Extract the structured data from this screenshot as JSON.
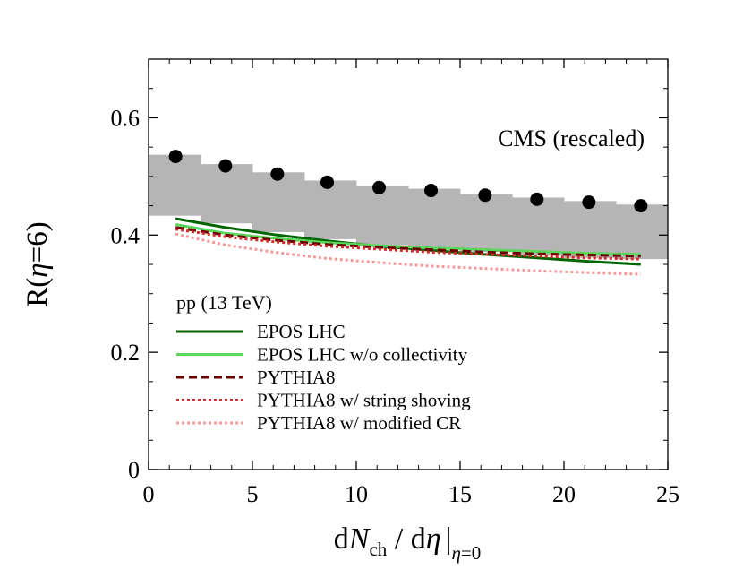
{
  "chart_data": {
    "type": "line",
    "title": "",
    "xlabel": "dNch / dη |η=0",
    "ylabel": "R(η=6)",
    "xlim": [
      0,
      25
    ],
    "ylim": [
      0,
      0.7
    ],
    "x_ticks": [
      0,
      5,
      10,
      15,
      20,
      25
    ],
    "x_tick_labels": [
      "0",
      "5",
      "10",
      "15",
      "20",
      "25"
    ],
    "y_ticks": [
      0,
      0.2,
      0.4,
      0.6
    ],
    "y_tick_labels": [
      "0",
      "0.2",
      "0.4",
      "0.6"
    ],
    "grid": false,
    "annotation": "CMS (rescaled)",
    "legend_title": "pp (13 TeV)",
    "legend_position": "bottom-left",
    "cms_data": {
      "name": "CMS (rescaled)",
      "x": [
        1.3,
        3.7,
        6.2,
        8.6,
        11.1,
        13.6,
        16.2,
        18.7,
        21.2,
        23.7
      ],
      "y": [
        0.534,
        0.518,
        0.504,
        0.49,
        0.481,
        0.476,
        0.468,
        0.461,
        0.456,
        0.45
      ],
      "band_edges": [
        0,
        2.5,
        5,
        7.5,
        10,
        12.5,
        15,
        17.5,
        20,
        22.5,
        25
      ],
      "band_high": [
        0.537,
        0.521,
        0.507,
        0.493,
        0.484,
        0.479,
        0.47,
        0.464,
        0.458,
        0.452
      ],
      "band_low": [
        0.433,
        0.42,
        0.405,
        0.393,
        0.383,
        0.376,
        0.371,
        0.365,
        0.361,
        0.359
      ]
    },
    "series": [
      {
        "name": "EPOS LHC",
        "color": "#006400",
        "dash": "solid",
        "x": [
          1.3,
          3.7,
          6.2,
          8.6,
          11.1,
          13.6,
          16.2,
          18.7,
          21.2,
          23.7
        ],
        "y": [
          0.428,
          0.413,
          0.4,
          0.39,
          0.381,
          0.374,
          0.367,
          0.361,
          0.355,
          0.35
        ]
      },
      {
        "name": "EPOS LHC w/o collectivity",
        "color": "#5cd65c",
        "dash": "solid",
        "x": [
          1.3,
          3.7,
          6.2,
          8.6,
          11.1,
          13.6,
          16.2,
          18.7,
          21.2,
          23.7
        ],
        "y": [
          0.418,
          0.403,
          0.394,
          0.387,
          0.382,
          0.378,
          0.375,
          0.372,
          0.369,
          0.367
        ]
      },
      {
        "name": "PYTHIA8",
        "color": "#6b0000",
        "dash": "dashed",
        "x": [
          1.3,
          3.7,
          6.2,
          8.6,
          11.1,
          13.6,
          16.2,
          18.7,
          21.2,
          23.7
        ],
        "y": [
          0.413,
          0.4,
          0.391,
          0.384,
          0.379,
          0.375,
          0.371,
          0.368,
          0.366,
          0.364
        ]
      },
      {
        "name": "PYTHIA8 w/ string shoving",
        "color": "#d42a2a",
        "dash": "dotted",
        "x": [
          1.3,
          3.7,
          6.2,
          8.6,
          11.1,
          13.6,
          16.2,
          18.7,
          21.2,
          23.7
        ],
        "y": [
          0.41,
          0.397,
          0.388,
          0.381,
          0.376,
          0.371,
          0.367,
          0.364,
          0.361,
          0.359
        ]
      },
      {
        "name": "PYTHIA8 w/ modified CR",
        "color": "#f59a9a",
        "dash": "dotted",
        "x": [
          1.3,
          3.7,
          6.2,
          8.6,
          11.1,
          13.6,
          16.2,
          18.7,
          21.2,
          23.7
        ],
        "y": [
          0.402,
          0.383,
          0.37,
          0.36,
          0.353,
          0.347,
          0.343,
          0.339,
          0.336,
          0.333
        ]
      }
    ]
  }
}
